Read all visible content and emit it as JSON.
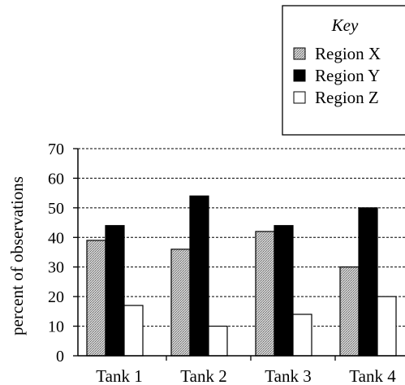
{
  "chart_data": {
    "type": "bar",
    "title": "",
    "xlabel": "",
    "ylabel": "percent of observations",
    "categories": [
      "Tank 1",
      "Tank 2",
      "Tank 3",
      "Tank 4"
    ],
    "series": [
      {
        "name": "Region X",
        "values": [
          39,
          36,
          42,
          30
        ],
        "color": "#bdbdbd",
        "pattern": "stipple"
      },
      {
        "name": "Region Y",
        "values": [
          44,
          54,
          44,
          50
        ],
        "color": "#000000"
      },
      {
        "name": "Region Z",
        "values": [
          17,
          10,
          14,
          20
        ],
        "color": "#ffffff"
      }
    ],
    "ylim": [
      0,
      70
    ],
    "yticks": [
      0,
      10,
      20,
      30,
      40,
      50,
      60,
      70
    ],
    "grid": "horizontal dashed",
    "legend": {
      "title": "Key",
      "placement": "top-right"
    }
  }
}
